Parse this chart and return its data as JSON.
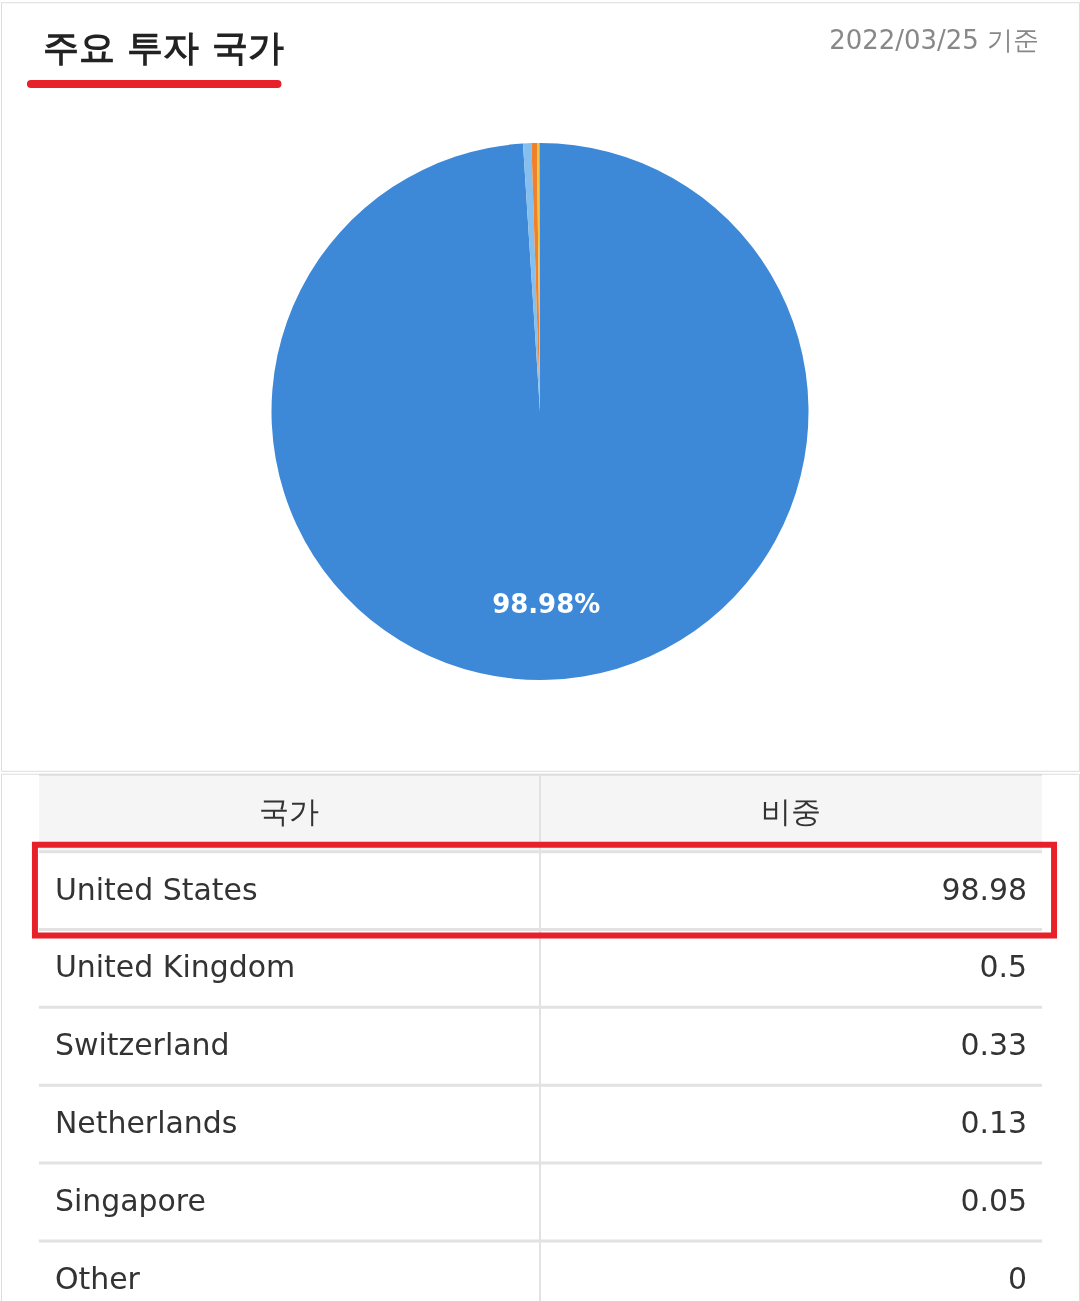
{
  "chart_data": [
    {
      "type": "pie",
      "title": "주요 투자 국가",
      "categories": [
        null,
        null,
        null,
        null,
        null,
        null
      ],
      "values": [
        98.98,
        0.5,
        0.33,
        0.13,
        0.05,
        0
      ],
      "colors": [
        "#3d89d8",
        "#85bff0",
        "#f0812c",
        "#f5c342",
        "#6cc070",
        "#aaaaaa"
      ],
      "value_labels": [
        "98.98%",
        null,
        null,
        null,
        null,
        null
      ],
      "annotations": [
        "2022/03/25 기준"
      ]
    },
    {
      "type": "other",
      "categories": [
        "United States",
        "United Kingdom",
        "Switzerland",
        "Netherlands",
        "Singapore",
        "Other"
      ],
      "values": [
        98.98,
        0.5,
        0.33,
        0.13,
        0.05,
        0
      ],
      "data_labels": true,
      "annotations": [
        "국가",
        "비중"
      ]
    }
  ]
}
